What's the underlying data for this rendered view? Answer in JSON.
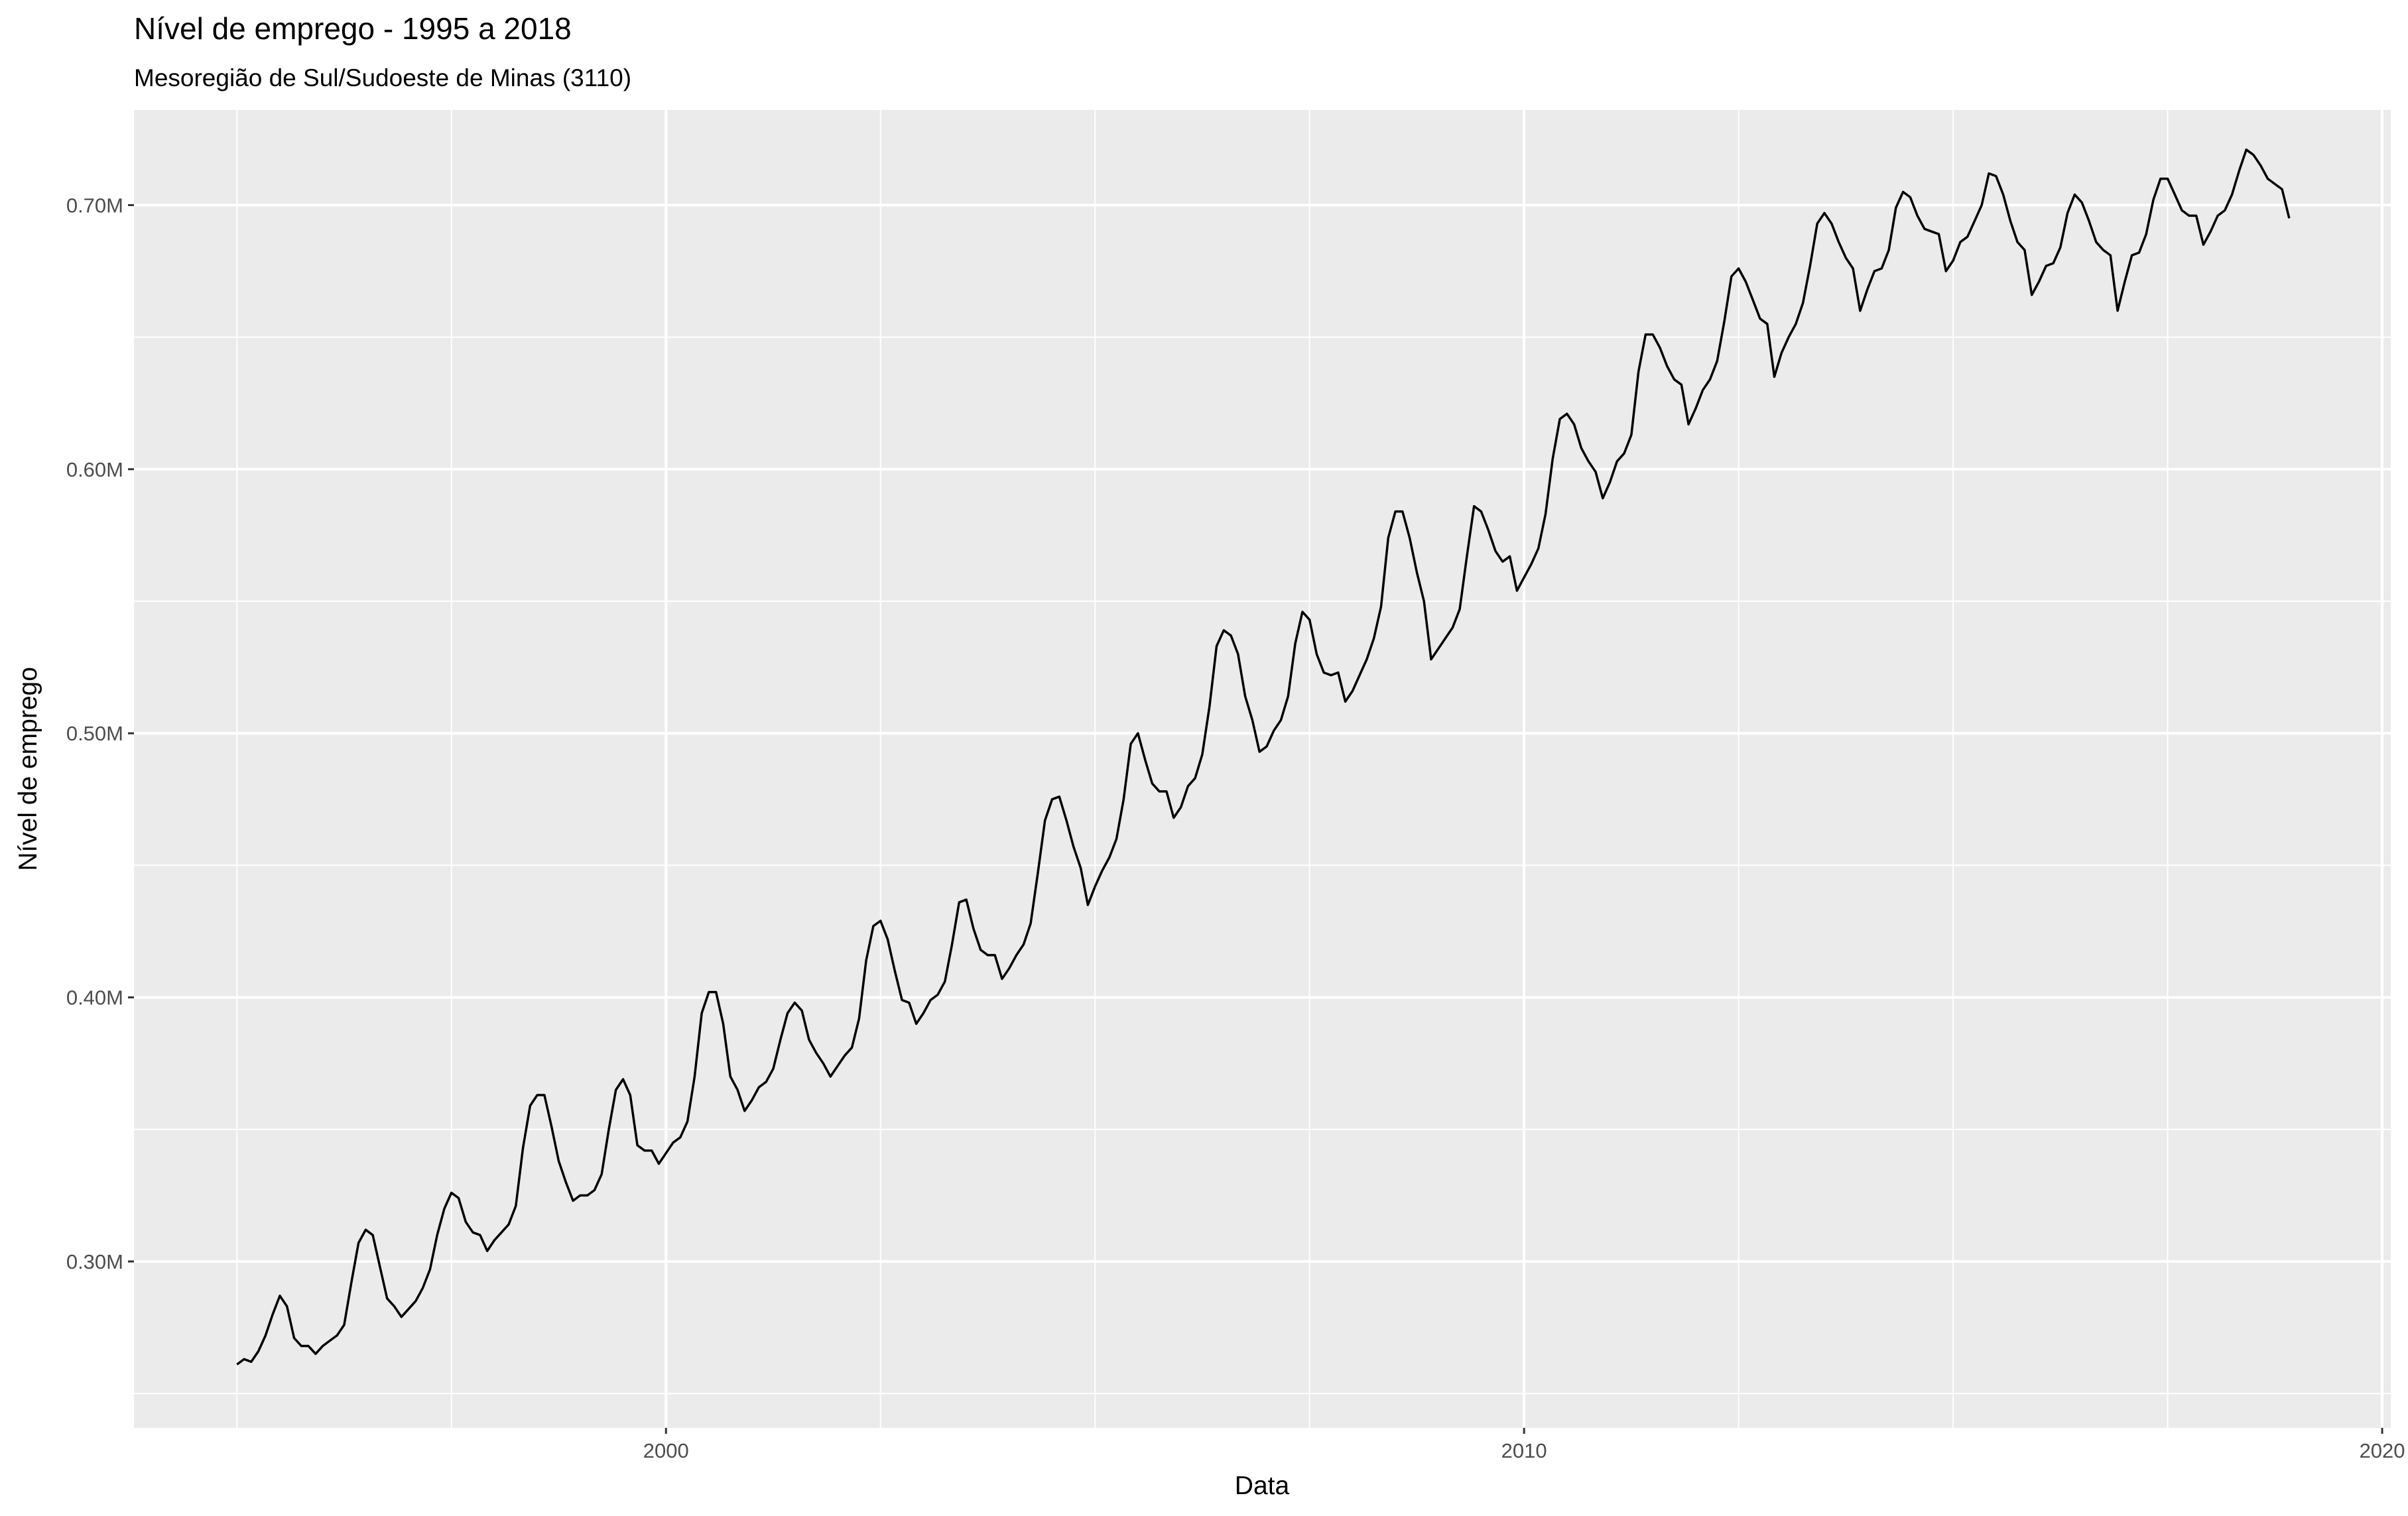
{
  "chart_data": {
    "type": "line",
    "title": "Nível de emprego - 1995 a 2018",
    "subtitle": "Mesoregião de Sul/Sudoeste de Minas (3110)",
    "xlabel": "Data",
    "ylabel": "Nível de emprego",
    "xlim": [
      1993.8,
      2020.1
    ],
    "ylim": [
      0.237,
      0.736
    ],
    "x_ticks": [
      2000,
      2010,
      2020
    ],
    "x_tick_labels": [
      "2000",
      "2010",
      "2020"
    ],
    "y_ticks": [
      0.3,
      0.4,
      0.5,
      0.6,
      0.7
    ],
    "y_tick_labels": [
      "0.30M",
      "0.40M",
      "0.50M",
      "0.60M",
      "0.70M"
    ],
    "grid": true,
    "legend": "none",
    "colors": {
      "panel": "#ebebeb",
      "grid": "#ffffff",
      "line": "#000000",
      "tick": "#4d4d4d"
    },
    "series": [
      {
        "x_start": 1995.0,
        "x_step": 0.08333333,
        "values": [
          0.261,
          0.263,
          0.262,
          0.266,
          0.272,
          0.28,
          0.287,
          0.283,
          0.271,
          0.268,
          0.268,
          0.265,
          0.268,
          0.27,
          0.272,
          0.276,
          0.292,
          0.307,
          0.312,
          0.31,
          0.298,
          0.286,
          0.283,
          0.279,
          0.282,
          0.285,
          0.29,
          0.297,
          0.31,
          0.32,
          0.326,
          0.324,
          0.315,
          0.311,
          0.31,
          0.304,
          0.308,
          0.311,
          0.314,
          0.321,
          0.343,
          0.359,
          0.363,
          0.363,
          0.351,
          0.338,
          0.33,
          0.323,
          0.325,
          0.325,
          0.327,
          0.333,
          0.35,
          0.365,
          0.369,
          0.363,
          0.344,
          0.342,
          0.342,
          0.337,
          0.341,
          0.345,
          0.347,
          0.353,
          0.37,
          0.394,
          0.402,
          0.402,
          0.39,
          0.37,
          0.365,
          0.357,
          0.361,
          0.366,
          0.368,
          0.373,
          0.384,
          0.394,
          0.398,
          0.395,
          0.384,
          0.379,
          0.375,
          0.37,
          0.374,
          0.378,
          0.381,
          0.392,
          0.414,
          0.427,
          0.429,
          0.422,
          0.41,
          0.399,
          0.398,
          0.39,
          0.394,
          0.399,
          0.401,
          0.406,
          0.42,
          0.436,
          0.437,
          0.426,
          0.418,
          0.416,
          0.416,
          0.407,
          0.411,
          0.416,
          0.42,
          0.428,
          0.447,
          0.467,
          0.475,
          0.476,
          0.467,
          0.457,
          0.449,
          0.435,
          0.442,
          0.448,
          0.453,
          0.46,
          0.475,
          0.496,
          0.5,
          0.49,
          0.481,
          0.478,
          0.478,
          0.468,
          0.472,
          0.48,
          0.483,
          0.492,
          0.51,
          0.533,
          0.539,
          0.537,
          0.53,
          0.514,
          0.505,
          0.493,
          0.495,
          0.501,
          0.505,
          0.514,
          0.534,
          0.546,
          0.543,
          0.53,
          0.523,
          0.522,
          0.523,
          0.512,
          0.516,
          0.522,
          0.528,
          0.536,
          0.548,
          0.574,
          0.584,
          0.584,
          0.574,
          0.561,
          0.55,
          0.528,
          0.532,
          0.536,
          0.54,
          0.547,
          0.567,
          0.586,
          0.584,
          0.577,
          0.569,
          0.565,
          0.567,
          0.554,
          0.559,
          0.564,
          0.57,
          0.583,
          0.604,
          0.619,
          0.621,
          0.617,
          0.608,
          0.603,
          0.599,
          0.589,
          0.595,
          0.603,
          0.606,
          0.613,
          0.637,
          0.651,
          0.651,
          0.646,
          0.639,
          0.634,
          0.632,
          0.617,
          0.623,
          0.63,
          0.634,
          0.641,
          0.656,
          0.673,
          0.676,
          0.671,
          0.664,
          0.657,
          0.655,
          0.635,
          0.644,
          0.65,
          0.655,
          0.663,
          0.677,
          0.693,
          0.697,
          0.693,
          0.686,
          0.68,
          0.676,
          0.66,
          0.668,
          0.675,
          0.676,
          0.683,
          0.699,
          0.705,
          0.703,
          0.696,
          0.691,
          0.69,
          0.689,
          0.675,
          0.679,
          0.686,
          0.688,
          0.694,
          0.7,
          0.712,
          0.711,
          0.704,
          0.694,
          0.686,
          0.683,
          0.666,
          0.671,
          0.677,
          0.678,
          0.684,
          0.697,
          0.704,
          0.701,
          0.694,
          0.686,
          0.683,
          0.681,
          0.66,
          0.671,
          0.681,
          0.682,
          0.689,
          0.702,
          0.71,
          0.71,
          0.704,
          0.698,
          0.696,
          0.696,
          0.685,
          0.69,
          0.696,
          0.698,
          0.704,
          0.713,
          0.721,
          0.719,
          0.715,
          0.71,
          0.708,
          0.706,
          0.695
        ]
      }
    ]
  }
}
